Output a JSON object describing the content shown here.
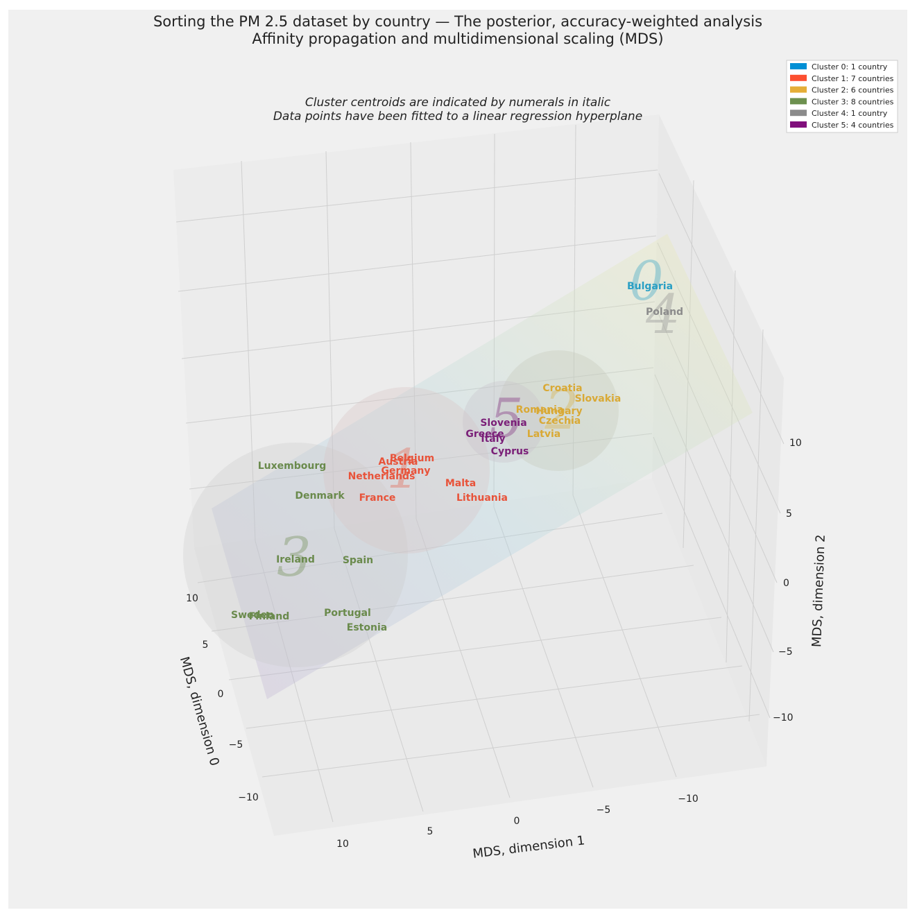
{
  "chart_data": {
    "type": "scatter",
    "title": "Sorting the PM 2.5 dataset by country — The posterior, accuracy-weighted analysis",
    "title_line2": "Affinity propagation and multidimensional scaling (MDS)",
    "subtitle": "Cluster centroids are indicated by numerals in italic",
    "subtitle_line2": "Data points have been fitted to a linear regression hyperplane",
    "xlabel": "MDS, dimension 0",
    "ylabel": "MDS, dimension 1",
    "zlabel": "MDS, dimension 2",
    "dim0_ticks": [
      "10",
      "5",
      "0",
      "−5",
      "−10"
    ],
    "dim1_ticks": [
      "10",
      "5",
      "0",
      "−5",
      "−10"
    ],
    "dim2_ticks": [
      "10",
      "5",
      "0",
      "−5",
      "−10"
    ],
    "legend": [
      {
        "label": "Cluster 0: 1 country",
        "color": "#008fd5"
      },
      {
        "label": "Cluster 1: 7 countries",
        "color": "#fc4f30"
      },
      {
        "label": "Cluster 2: 6 countries",
        "color": "#e5ae38"
      },
      {
        "label": "Cluster 3: 8 countries",
        "color": "#6d904f"
      },
      {
        "label": "Cluster 4: 1 country",
        "color": "#8b8b8b"
      },
      {
        "label": "Cluster 5: 4 countries",
        "color": "#810f7c"
      }
    ],
    "clusters": [
      {
        "id": "0",
        "color": "#2a9fc4",
        "countries": [
          "Bulgaria"
        ]
      },
      {
        "id": "1",
        "color": "#e8533a",
        "countries": [
          "Belgium",
          "Austria",
          "Germany",
          "Netherlands",
          "France",
          "Malta",
          "Lithuania"
        ]
      },
      {
        "id": "2",
        "color": "#d9a935",
        "countries": [
          "Croatia",
          "Slovakia",
          "Romania",
          "Hungary",
          "Czechia",
          "Latvia"
        ]
      },
      {
        "id": "3",
        "color": "#6a8a4c",
        "countries": [
          "Luxembourg",
          "Denmark",
          "Ireland",
          "Spain",
          "Sweden",
          "Finland",
          "Portugal",
          "Estonia"
        ]
      },
      {
        "id": "4",
        "color": "#8b8b8b",
        "countries": [
          "Poland"
        ]
      },
      {
        "id": "5",
        "color": "#7a1f78",
        "countries": [
          "Slovenia",
          "Greece",
          "Italy",
          "Cyprus"
        ]
      }
    ]
  }
}
